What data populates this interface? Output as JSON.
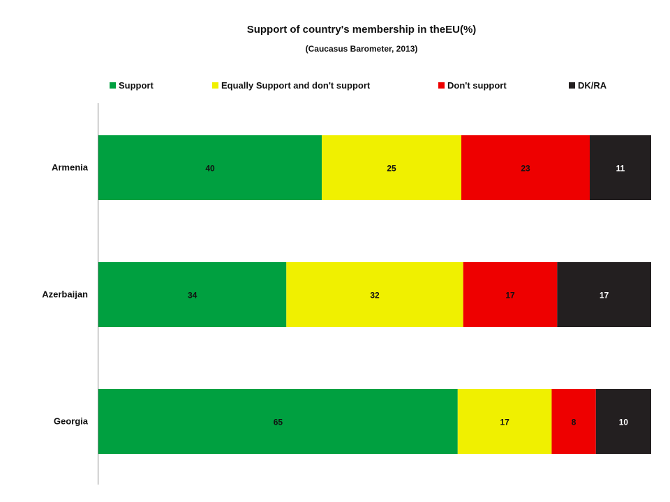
{
  "chart_data": {
    "type": "bar",
    "orientation": "horizontal",
    "stacked": true,
    "title": "Support of country's membership in theEU(%)",
    "subtitle": "(Caucasus Barometer, 2013)",
    "categories": [
      "Armenia",
      "Azerbaijan",
      "Georgia"
    ],
    "series": [
      {
        "name": "Support",
        "values": [
          40,
          34,
          65
        ],
        "color": "#00a040",
        "label_color": "#111111"
      },
      {
        "name": "Equally Support and don't support",
        "values": [
          25,
          32,
          17
        ],
        "color": "#f0f000",
        "label_color": "#111111"
      },
      {
        "name": "Don't support",
        "values": [
          23,
          17,
          8
        ],
        "color": "#ee0000",
        "label_color": "#111111"
      },
      {
        "name": "DK/RA",
        "values": [
          11,
          17,
          10
        ],
        "color": "#231f20",
        "label_color": "#ffffff"
      }
    ],
    "legend_position": "top",
    "grid": false,
    "xlabel": "",
    "ylabel": ""
  }
}
